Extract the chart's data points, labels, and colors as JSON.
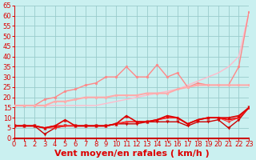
{
  "xlabel": "Vent moyen/en rafales ( km/h )",
  "background_color": "#caf0f0",
  "grid_color": "#99cccc",
  "xlim": [
    0,
    23
  ],
  "ylim": [
    0,
    65
  ],
  "yticks": [
    0,
    5,
    10,
    15,
    20,
    25,
    30,
    35,
    40,
    45,
    50,
    55,
    60,
    65
  ],
  "xticks": [
    0,
    1,
    2,
    3,
    4,
    5,
    6,
    7,
    8,
    9,
    10,
    11,
    12,
    13,
    14,
    15,
    16,
    17,
    18,
    19,
    20,
    21,
    22,
    23
  ],
  "series": [
    {
      "x": [
        0,
        1,
        2,
        3,
        4,
        5,
        6,
        7,
        8,
        9,
        10,
        11,
        12,
        13,
        14,
        15,
        16,
        17,
        18,
        19,
        20,
        21,
        22,
        23
      ],
      "y": [
        16,
        16,
        16,
        16,
        16,
        16,
        16,
        16,
        16,
        17,
        18,
        19,
        20,
        21,
        22,
        23,
        24,
        26,
        28,
        30,
        32,
        35,
        40,
        62
      ],
      "color": "#ffbbcc",
      "lw": 1.0,
      "marker": null,
      "ms": 0,
      "zorder": 2
    },
    {
      "x": [
        0,
        1,
        2,
        3,
        4,
        5,
        6,
        7,
        8,
        9,
        10,
        11,
        12,
        13,
        14,
        15,
        16,
        17,
        18,
        19,
        20,
        21,
        22,
        23
      ],
      "y": [
        16,
        16,
        16,
        19,
        20,
        23,
        24,
        26,
        27,
        30,
        30,
        35,
        30,
        30,
        36,
        30,
        32,
        25,
        27,
        26,
        26,
        26,
        35,
        62
      ],
      "color": "#ff8888",
      "lw": 1.0,
      "marker": "o",
      "ms": 2.0,
      "zorder": 3
    },
    {
      "x": [
        0,
        1,
        2,
        3,
        4,
        5,
        6,
        7,
        8,
        9,
        10,
        11,
        12,
        13,
        14,
        15,
        16,
        17,
        18,
        19,
        20,
        21,
        22,
        23
      ],
      "y": [
        16,
        16,
        16,
        16,
        18,
        18,
        19,
        20,
        20,
        20,
        21,
        21,
        21,
        22,
        22,
        22,
        24,
        25,
        26,
        26,
        26,
        26,
        26,
        26
      ],
      "color": "#ffaaaa",
      "lw": 1.5,
      "marker": "o",
      "ms": 2.0,
      "zorder": 3
    },
    {
      "x": [
        0,
        1,
        2,
        3,
        4,
        5,
        6,
        7,
        8,
        9,
        10,
        11,
        12,
        13,
        14,
        15,
        16,
        17,
        18,
        19,
        20,
        21,
        22,
        23
      ],
      "y": [
        6,
        6,
        6,
        5,
        6,
        9,
        6,
        6,
        6,
        6,
        7,
        11,
        8,
        8,
        9,
        11,
        10,
        7,
        9,
        10,
        10,
        10,
        11,
        15
      ],
      "color": "#dd0000",
      "lw": 1.2,
      "marker": "^",
      "ms": 2.5,
      "zorder": 6
    },
    {
      "x": [
        0,
        1,
        2,
        3,
        4,
        5,
        6,
        7,
        8,
        9,
        10,
        11,
        12,
        13,
        14,
        15,
        16,
        17,
        18,
        19,
        20,
        21,
        22,
        23
      ],
      "y": [
        6,
        6,
        6,
        2,
        5,
        6,
        6,
        6,
        6,
        6,
        7,
        7,
        7,
        8,
        8,
        8,
        8,
        6,
        8,
        8,
        9,
        5,
        9,
        15
      ],
      "color": "#cc0000",
      "lw": 1.0,
      "marker": "v",
      "ms": 2.5,
      "zorder": 5
    },
    {
      "x": [
        0,
        1,
        2,
        3,
        4,
        5,
        6,
        7,
        8,
        9,
        10,
        11,
        12,
        13,
        14,
        15,
        16,
        17,
        18,
        19,
        20,
        21,
        22,
        23
      ],
      "y": [
        6,
        6,
        6,
        5,
        6,
        6,
        6,
        6,
        6,
        6,
        7,
        8,
        8,
        8,
        9,
        10,
        10,
        7,
        9,
        10,
        10,
        9,
        10,
        15
      ],
      "color": "#ee1111",
      "lw": 1.3,
      "marker": null,
      "ms": 0,
      "zorder": 4
    },
    {
      "x": [
        0,
        1,
        2,
        3,
        4,
        5,
        6,
        7,
        8,
        9,
        10,
        11,
        12,
        13,
        14,
        15,
        16,
        17,
        18,
        19,
        20,
        21,
        22,
        23
      ],
      "y": [
        6,
        6,
        6,
        5,
        5,
        6,
        6,
        6,
        6,
        6,
        7,
        8,
        8,
        8,
        9,
        10,
        10,
        7,
        9,
        10,
        10,
        8,
        10,
        15
      ],
      "color": "#ff3333",
      "lw": 0.8,
      "marker": "o",
      "ms": 1.5,
      "zorder": 5
    }
  ],
  "xlabel_color": "#dd0000",
  "xlabel_fontsize": 8,
  "tick_color": "#dd0000",
  "tick_fontsize": 6,
  "arrow_color": "#dd0000"
}
